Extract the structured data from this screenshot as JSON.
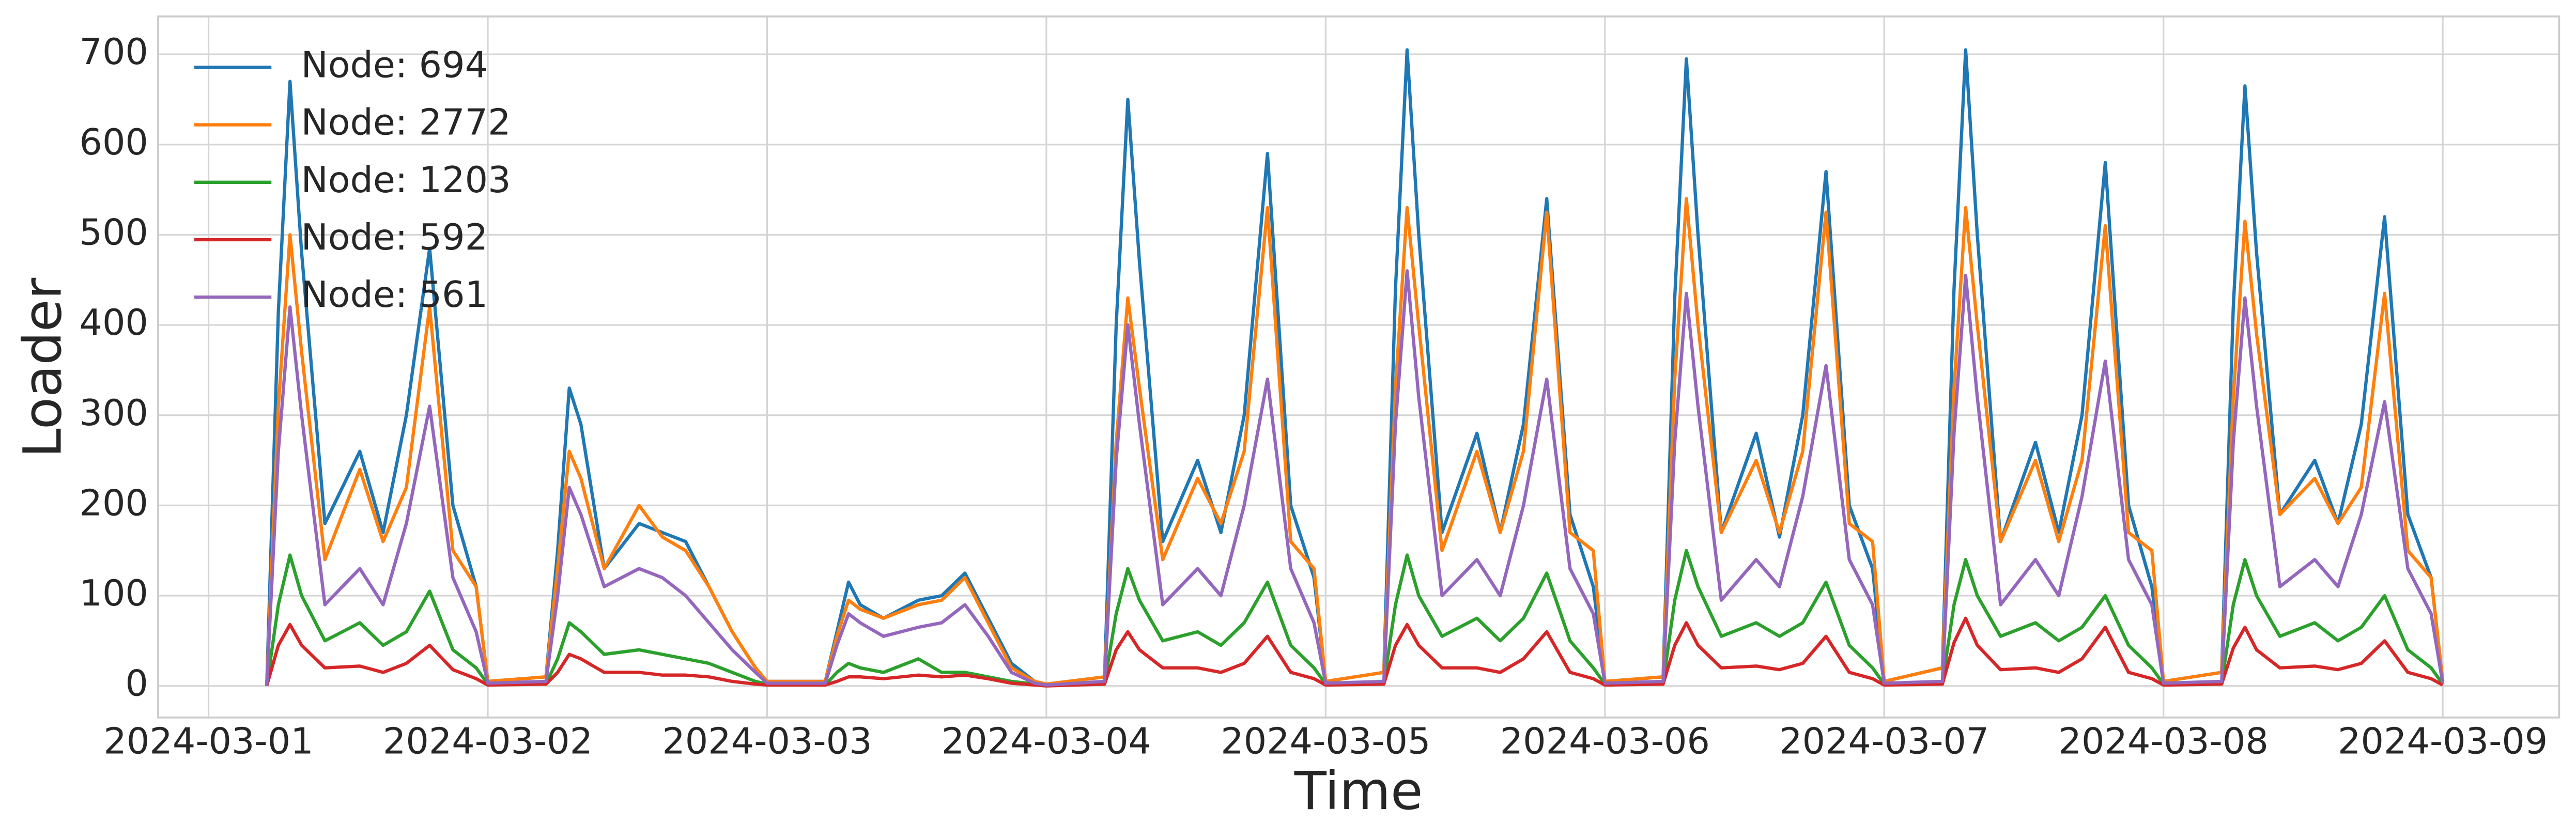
{
  "chart_data": {
    "type": "line",
    "xlabel": "Time",
    "ylabel": "Loader",
    "grid": true,
    "legend": "upper left",
    "xlim": [
      "2024-02-29T19:40",
      "2024-03-09T10:00"
    ],
    "xticks": [
      "2024-03-01",
      "2024-03-02",
      "2024-03-03",
      "2024-03-04",
      "2024-03-05",
      "2024-03-06",
      "2024-03-07",
      "2024-03-08",
      "2024-03-09"
    ],
    "ylim": [
      -35,
      742
    ],
    "yticks": [
      0,
      100,
      200,
      300,
      400,
      500,
      600,
      700
    ],
    "x": [
      "2024-03-01T05:00",
      "2024-03-01T06:00",
      "2024-03-01T07:00",
      "2024-03-01T08:00",
      "2024-03-01T10:00",
      "2024-03-01T13:00",
      "2024-03-01T15:00",
      "2024-03-01T17:00",
      "2024-03-01T19:00",
      "2024-03-01T21:00",
      "2024-03-01T23:00",
      "2024-03-02T00:00",
      "2024-03-02T05:00",
      "2024-03-02T06:00",
      "2024-03-02T07:00",
      "2024-03-02T08:00",
      "2024-03-02T10:00",
      "2024-03-02T13:00",
      "2024-03-02T15:00",
      "2024-03-02T17:00",
      "2024-03-02T19:00",
      "2024-03-02T21:00",
      "2024-03-02T23:00",
      "2024-03-03T00:00",
      "2024-03-03T05:00",
      "2024-03-03T06:00",
      "2024-03-03T07:00",
      "2024-03-03T08:00",
      "2024-03-03T10:00",
      "2024-03-03T13:00",
      "2024-03-03T15:00",
      "2024-03-03T17:00",
      "2024-03-03T19:00",
      "2024-03-03T21:00",
      "2024-03-03T23:00",
      "2024-03-04T00:00",
      "2024-03-04T05:00",
      "2024-03-04T06:00",
      "2024-03-04T07:00",
      "2024-03-04T08:00",
      "2024-03-04T10:00",
      "2024-03-04T13:00",
      "2024-03-04T15:00",
      "2024-03-04T17:00",
      "2024-03-04T19:00",
      "2024-03-04T21:00",
      "2024-03-04T23:00",
      "2024-03-05T00:00",
      "2024-03-05T05:00",
      "2024-03-05T06:00",
      "2024-03-05T07:00",
      "2024-03-05T08:00",
      "2024-03-05T10:00",
      "2024-03-05T13:00",
      "2024-03-05T15:00",
      "2024-03-05T17:00",
      "2024-03-05T19:00",
      "2024-03-05T21:00",
      "2024-03-05T23:00",
      "2024-03-06T00:00",
      "2024-03-06T05:00",
      "2024-03-06T06:00",
      "2024-03-06T07:00",
      "2024-03-06T08:00",
      "2024-03-06T10:00",
      "2024-03-06T13:00",
      "2024-03-06T15:00",
      "2024-03-06T17:00",
      "2024-03-06T19:00",
      "2024-03-06T21:00",
      "2024-03-06T23:00",
      "2024-03-07T00:00",
      "2024-03-07T05:00",
      "2024-03-07T06:00",
      "2024-03-07T07:00",
      "2024-03-07T08:00",
      "2024-03-07T10:00",
      "2024-03-07T13:00",
      "2024-03-07T15:00",
      "2024-03-07T17:00",
      "2024-03-07T19:00",
      "2024-03-07T21:00",
      "2024-03-07T23:00",
      "2024-03-08T00:00",
      "2024-03-08T05:00",
      "2024-03-08T06:00",
      "2024-03-08T07:00",
      "2024-03-08T08:00",
      "2024-03-08T10:00",
      "2024-03-08T13:00",
      "2024-03-08T15:00",
      "2024-03-08T17:00",
      "2024-03-08T19:00",
      "2024-03-08T21:00",
      "2024-03-08T23:00",
      "2024-03-09T00:00"
    ],
    "series": [
      {
        "name": "Node: 694",
        "color": "#1f77b4",
        "values": [
          0,
          415,
          670,
          480,
          180,
          260,
          170,
          300,
          485,
          200,
          110,
          5,
          10,
          150,
          330,
          290,
          130,
          180,
          170,
          160,
          110,
          60,
          20,
          5,
          5,
          60,
          115,
          90,
          75,
          95,
          100,
          125,
          75,
          25,
          5,
          2,
          10,
          400,
          650,
          470,
          160,
          250,
          170,
          300,
          590,
          200,
          120,
          5,
          15,
          440,
          705,
          500,
          170,
          280,
          170,
          290,
          540,
          190,
          110,
          5,
          10,
          430,
          695,
          500,
          170,
          280,
          165,
          300,
          570,
          200,
          130,
          5,
          20,
          440,
          705,
          500,
          160,
          270,
          170,
          300,
          580,
          200,
          110,
          5,
          15,
          420,
          665,
          480,
          190,
          250,
          180,
          290,
          520,
          190,
          120,
          5
        ]
      },
      {
        "name": "Node: 2772",
        "color": "#ff7f0e",
        "values": [
          0,
          310,
          500,
          370,
          140,
          240,
          160,
          220,
          420,
          150,
          110,
          5,
          10,
          130,
          260,
          230,
          130,
          200,
          165,
          150,
          110,
          60,
          20,
          5,
          5,
          55,
          95,
          85,
          75,
          90,
          95,
          120,
          70,
          20,
          5,
          2,
          10,
          270,
          430,
          330,
          140,
          230,
          180,
          260,
          530,
          160,
          130,
          5,
          15,
          330,
          530,
          400,
          150,
          260,
          170,
          260,
          525,
          170,
          150,
          5,
          10,
          340,
          540,
          400,
          170,
          250,
          170,
          260,
          525,
          180,
          160,
          5,
          20,
          330,
          530,
          400,
          160,
          250,
          160,
          250,
          510,
          170,
          150,
          5,
          15,
          320,
          515,
          390,
          190,
          230,
          180,
          220,
          435,
          150,
          120,
          5
        ]
      },
      {
        "name": "Node: 1203",
        "color": "#2ca02c",
        "values": [
          0,
          90,
          145,
          100,
          50,
          70,
          45,
          60,
          105,
          40,
          20,
          2,
          2,
          30,
          70,
          60,
          35,
          40,
          35,
          30,
          25,
          15,
          5,
          2,
          1,
          15,
          25,
          20,
          15,
          30,
          15,
          15,
          10,
          5,
          2,
          1,
          3,
          80,
          130,
          95,
          50,
          60,
          45,
          70,
          115,
          45,
          20,
          2,
          3,
          90,
          145,
          100,
          55,
          75,
          50,
          75,
          125,
          50,
          20,
          2,
          3,
          95,
          150,
          110,
          55,
          70,
          55,
          70,
          115,
          45,
          20,
          2,
          3,
          90,
          140,
          100,
          55,
          70,
          50,
          65,
          100,
          45,
          20,
          2,
          3,
          90,
          140,
          100,
          55,
          70,
          50,
          65,
          100,
          40,
          20,
          2
        ]
      },
      {
        "name": "Node: 592",
        "color": "#d62728",
        "values": [
          0,
          45,
          68,
          45,
          20,
          22,
          15,
          25,
          45,
          18,
          8,
          1,
          2,
          15,
          35,
          30,
          15,
          15,
          12,
          12,
          10,
          5,
          2,
          1,
          1,
          5,
          10,
          10,
          8,
          12,
          10,
          12,
          8,
          3,
          1,
          0,
          2,
          40,
          60,
          40,
          20,
          20,
          15,
          25,
          55,
          15,
          8,
          1,
          2,
          45,
          68,
          45,
          20,
          20,
          15,
          30,
          60,
          15,
          8,
          1,
          2,
          45,
          70,
          45,
          20,
          22,
          18,
          25,
          55,
          15,
          8,
          1,
          2,
          48,
          75,
          45,
          18,
          20,
          15,
          30,
          65,
          15,
          8,
          1,
          2,
          42,
          65,
          40,
          20,
          22,
          18,
          25,
          50,
          15,
          8,
          1
        ]
      },
      {
        "name": "Node: 561",
        "color": "#9467bd",
        "values": [
          0,
          260,
          420,
          300,
          90,
          130,
          90,
          180,
          310,
          120,
          60,
          3,
          5,
          100,
          220,
          190,
          110,
          130,
          120,
          100,
          70,
          40,
          15,
          3,
          3,
          45,
          80,
          70,
          55,
          65,
          70,
          90,
          55,
          15,
          3,
          1,
          5,
          250,
          400,
          290,
          90,
          130,
          100,
          200,
          340,
          130,
          70,
          3,
          5,
          290,
          460,
          320,
          100,
          140,
          100,
          200,
          340,
          130,
          80,
          3,
          5,
          270,
          435,
          310,
          95,
          140,
          110,
          210,
          355,
          140,
          90,
          3,
          5,
          280,
          455,
          320,
          90,
          140,
          100,
          210,
          360,
          140,
          90,
          3,
          5,
          270,
          430,
          310,
          110,
          140,
          110,
          190,
          315,
          130,
          80,
          3
        ]
      }
    ]
  }
}
